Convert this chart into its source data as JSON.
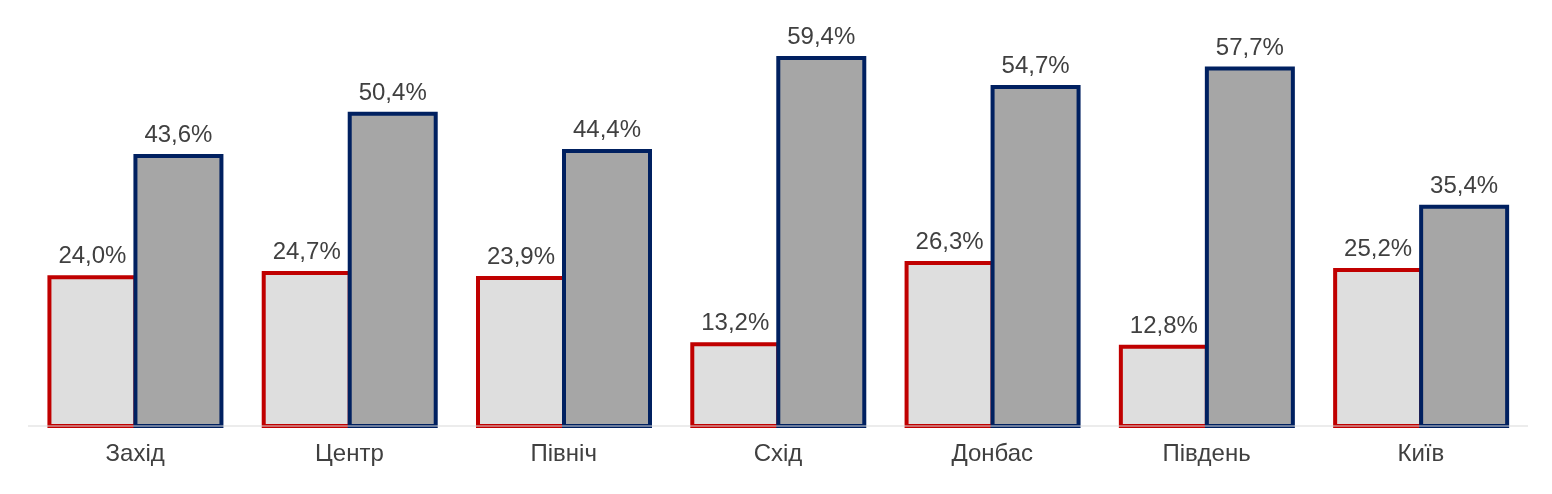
{
  "chart_data": {
    "type": "bar",
    "categories": [
      "Захід",
      "Центр",
      "Північ",
      "Схід",
      "Донбас",
      "Південь",
      "Київ"
    ],
    "series": [
      {
        "color": "#dedede",
        "values": [
          24.0,
          24.7,
          23.9,
          13.2,
          26.3,
          12.8,
          25.2
        ],
        "value_labels": [
          "24,0%",
          "24,7%",
          "23,9%",
          "13,2%",
          "26,3%",
          "12,8%",
          "25,2%"
        ]
      },
      {
        "color": "#a6a6a6",
        "values": [
          43.6,
          50.4,
          44.4,
          59.4,
          54.7,
          57.7,
          35.4
        ],
        "value_labels": [
          "43,6%",
          "50,4%",
          "44,4%",
          "59,4%",
          "54,7%",
          "57,7%",
          "35,4%"
        ]
      }
    ]
  }
}
